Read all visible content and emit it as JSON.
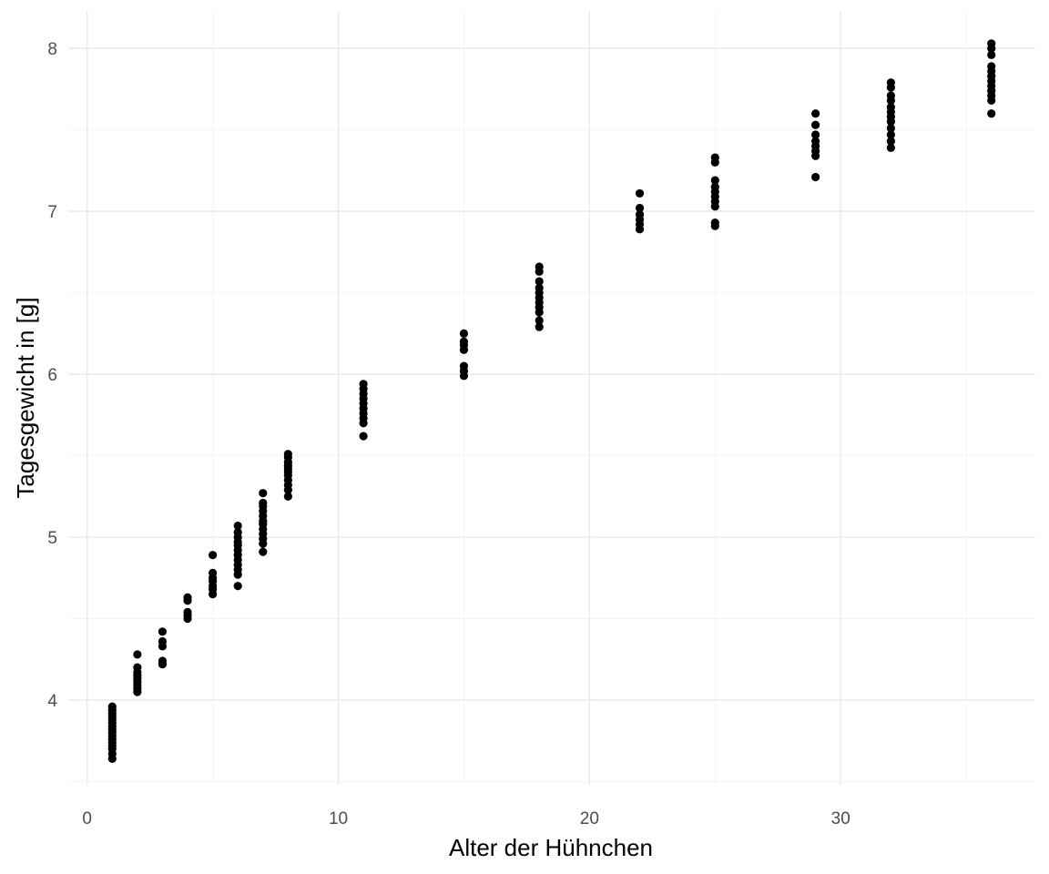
{
  "chart_data": {
    "type": "scatter",
    "title": "",
    "xlabel": "Alter der Hühnchen",
    "ylabel": "Tagesgewicht in [g]",
    "xlim": [
      -0.75,
      37.75
    ],
    "ylim": [
      3.48,
      8.23
    ],
    "x_ticks": [
      0,
      10,
      20,
      30
    ],
    "y_ticks": [
      4,
      5,
      6,
      7,
      8
    ],
    "grid": true,
    "legend": "none",
    "colors": {
      "points": "#000000",
      "grid_major": "#ebebeb",
      "grid_minor": "#f5f5f5",
      "tick_text": "#4d4d4d"
    },
    "points": [
      {
        "x": 1,
        "y": [
          3.64,
          3.67,
          3.7,
          3.72,
          3.74,
          3.76,
          3.78,
          3.8,
          3.82,
          3.84,
          3.86,
          3.88,
          3.9,
          3.92,
          3.94,
          3.96
        ]
      },
      {
        "x": 2,
        "y": [
          4.05,
          4.07,
          4.09,
          4.11,
          4.13,
          4.15,
          4.17,
          4.2,
          4.28
        ]
      },
      {
        "x": 3,
        "y": [
          4.22,
          4.24,
          4.33,
          4.36,
          4.42
        ]
      },
      {
        "x": 4,
        "y": [
          4.5,
          4.52,
          4.54,
          4.61,
          4.63
        ]
      },
      {
        "x": 5,
        "y": [
          4.65,
          4.68,
          4.7,
          4.73,
          4.75,
          4.78,
          4.89
        ]
      },
      {
        "x": 6,
        "y": [
          4.7,
          4.77,
          4.8,
          4.83,
          4.86,
          4.89,
          4.92,
          4.95,
          4.97,
          5.0,
          5.03,
          5.07
        ]
      },
      {
        "x": 7,
        "y": [
          4.91,
          4.96,
          4.99,
          5.02,
          5.05,
          5.08,
          5.1,
          5.13,
          5.16,
          5.19,
          5.21,
          5.27
        ]
      },
      {
        "x": 8,
        "y": [
          5.25,
          5.29,
          5.32,
          5.35,
          5.38,
          5.4,
          5.42,
          5.44,
          5.46,
          5.49,
          5.51
        ]
      },
      {
        "x": 11,
        "y": [
          5.62,
          5.7,
          5.73,
          5.76,
          5.79,
          5.82,
          5.85,
          5.88,
          5.91,
          5.94
        ]
      },
      {
        "x": 15,
        "y": [
          5.99,
          6.02,
          6.05,
          6.15,
          6.18,
          6.2,
          6.25
        ]
      },
      {
        "x": 18,
        "y": [
          6.29,
          6.33,
          6.38,
          6.41,
          6.44,
          6.47,
          6.5,
          6.53,
          6.57,
          6.63,
          6.66
        ]
      },
      {
        "x": 22,
        "y": [
          6.89,
          6.92,
          6.95,
          6.98,
          7.02,
          7.11
        ]
      },
      {
        "x": 25,
        "y": [
          6.91,
          6.93,
          7.03,
          7.06,
          7.09,
          7.12,
          7.15,
          7.19,
          7.3,
          7.33
        ]
      },
      {
        "x": 29,
        "y": [
          7.21,
          7.34,
          7.37,
          7.4,
          7.43,
          7.47,
          7.53,
          7.6
        ]
      },
      {
        "x": 32,
        "y": [
          7.39,
          7.43,
          7.47,
          7.51,
          7.55,
          7.58,
          7.61,
          7.64,
          7.68,
          7.71,
          7.76,
          7.79
        ]
      },
      {
        "x": 36,
        "y": [
          7.6,
          7.68,
          7.71,
          7.74,
          7.77,
          7.8,
          7.83,
          7.86,
          7.89,
          7.96,
          8.0,
          8.03
        ]
      }
    ]
  }
}
